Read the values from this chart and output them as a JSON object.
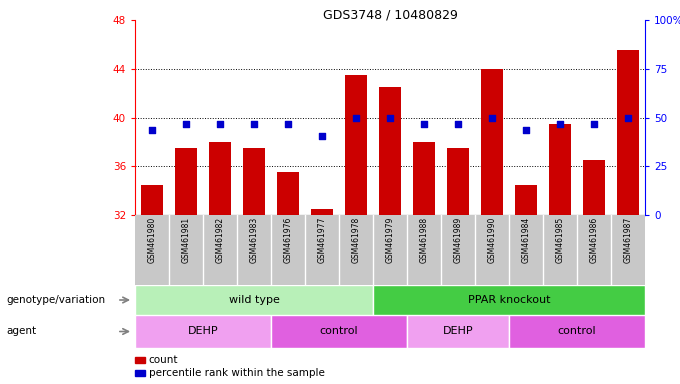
{
  "title": "GDS3748 / 10480829",
  "samples": [
    "GSM461980",
    "GSM461981",
    "GSM461982",
    "GSM461983",
    "GSM461976",
    "GSM461977",
    "GSM461978",
    "GSM461979",
    "GSM461988",
    "GSM461989",
    "GSM461990",
    "GSM461984",
    "GSM461985",
    "GSM461986",
    "GSM461987"
  ],
  "count_values": [
    34.5,
    37.5,
    38.0,
    37.5,
    35.5,
    32.5,
    43.5,
    42.5,
    38.0,
    37.5,
    44.0,
    34.5,
    39.5,
    36.5,
    45.5
  ],
  "percentile_values": [
    39.0,
    39.5,
    39.5,
    39.5,
    39.5,
    38.5,
    40.0,
    40.0,
    39.5,
    39.5,
    40.0,
    39.0,
    39.5,
    39.5,
    40.0
  ],
  "ylim_left": [
    32,
    48
  ],
  "ylim_right": [
    0,
    100
  ],
  "yticks_left": [
    32,
    36,
    40,
    44,
    48
  ],
  "yticks_right": [
    0,
    25,
    50,
    75,
    100
  ],
  "ytick_labels_right": [
    "0",
    "25",
    "50",
    "75",
    "100%"
  ],
  "bar_color": "#cc0000",
  "dot_color": "#0000cc",
  "genotype_groups": [
    {
      "label": "wild type",
      "start": 0,
      "end": 7,
      "color": "#b8f0b8"
    },
    {
      "label": "PPAR knockout",
      "start": 7,
      "end": 15,
      "color": "#44cc44"
    }
  ],
  "agent_groups": [
    {
      "label": "DEHP",
      "start": 0,
      "end": 4,
      "color": "#f0a0f0"
    },
    {
      "label": "control",
      "start": 4,
      "end": 8,
      "color": "#e060e0"
    },
    {
      "label": "DEHP",
      "start": 8,
      "end": 11,
      "color": "#f0a0f0"
    },
    {
      "label": "control",
      "start": 11,
      "end": 15,
      "color": "#e060e0"
    }
  ],
  "legend_count_label": "count",
  "legend_pct_label": "percentile rank within the sample",
  "xlabel_genotype": "genotype/variation",
  "xlabel_agent": "agent",
  "sample_bg_color": "#c8c8c8",
  "sample_sep_color": "#ffffff",
  "grid_yticks": [
    36,
    40,
    44
  ]
}
